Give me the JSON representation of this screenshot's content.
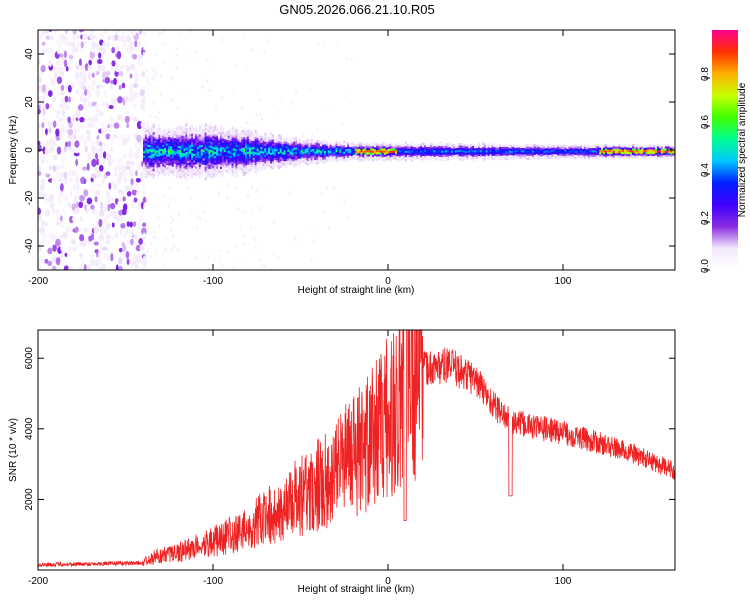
{
  "title": "GN05.2026.066.21.10.R05",
  "chart_data": [
    {
      "type": "heatmap",
      "name": "spectrogram",
      "xlabel": "Height of straight line (km)",
      "ylabel": "Frequency (Hz)",
      "xlim": [
        -200,
        164
      ],
      "ylim": [
        -50,
        50
      ],
      "xticks": [
        "-200",
        "-100",
        "0",
        "100"
      ],
      "yticks": [
        "40",
        "20",
        "0",
        "-20",
        "-40"
      ],
      "colorbar": {
        "label": "Normalized spectral amplitude",
        "range": [
          0.0,
          1.0
        ],
        "ticks": [
          "0.0",
          "0.2",
          "0.4",
          "0.6",
          "0.8"
        ],
        "colormap": [
          "#ffffff",
          "#f2e8fb",
          "#8a2be2",
          "#3f00ff",
          "#0020ff",
          "#00c8ff",
          "#00ff90",
          "#40ff00",
          "#c8ff00",
          "#ffb000",
          "#ff3000",
          "#ff0090"
        ]
      },
      "features": {
        "noise_region_x": [
          -200,
          -140
        ],
        "signal_band_center_hz": 0,
        "band_halfwidth_hz": [
          6,
          6,
          5,
          3,
          2,
          2,
          1.5,
          1.5
        ],
        "band_x": [
          -140,
          -100,
          -80,
          -50,
          -20,
          20,
          100,
          164
        ]
      }
    },
    {
      "type": "line",
      "name": "snr",
      "xlabel": "Height of straight line (km)",
      "ylabel": "SNR (10 * v/v)",
      "xlim": [
        -200,
        164
      ],
      "ylim": [
        0,
        6800
      ],
      "xticks": [
        "-200",
        "-100",
        "0",
        "100"
      ],
      "yticks": [
        "2000",
        "4000",
        "6000"
      ],
      "color": "#ee2222",
      "envelope": {
        "x": [
          -200,
          -140,
          -135,
          -120,
          -100,
          -80,
          -60,
          -40,
          -20,
          -10,
          0,
          10,
          20,
          35,
          50,
          60,
          70,
          80,
          100,
          120,
          140,
          164
        ],
        "y": [
          150,
          200,
          350,
          500,
          800,
          1200,
          1800,
          2400,
          3200,
          3700,
          4300,
          5200,
          5700,
          5800,
          5400,
          4700,
          4200,
          4100,
          3900,
          3600,
          3300,
          2800
        ]
      }
    }
  ]
}
